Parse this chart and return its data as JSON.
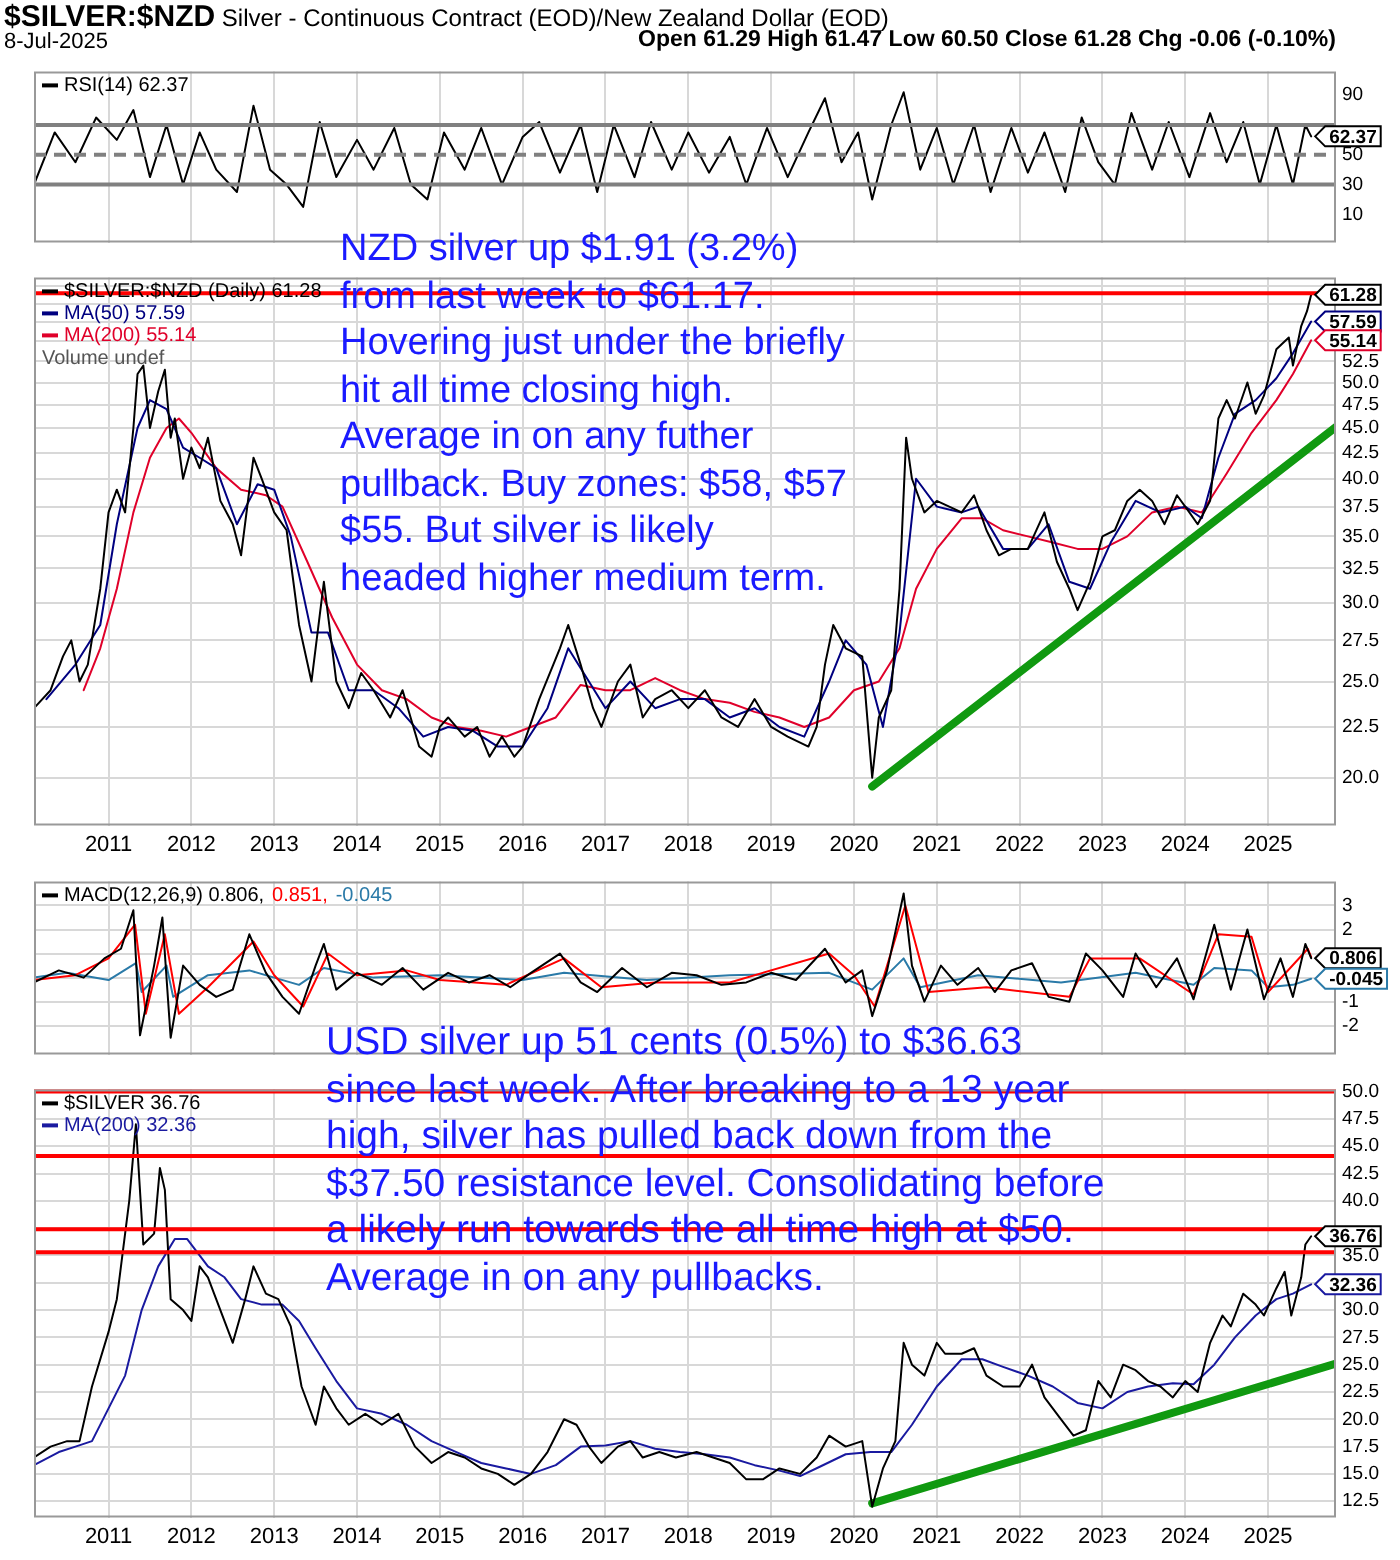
{
  "chart_data": [
    {
      "type": "line",
      "title": "$SILVER:$NZD Silver - Continuous Contract (EOD)/New Zealand Dollar (EOD)",
      "subtitle": "8-Jul-2025",
      "xlim": [
        2010.1,
        2025.82
      ],
      "xticks": [
        2011,
        2012,
        2013,
        2014,
        2015,
        2016,
        2017,
        2018,
        2019,
        2020,
        2021,
        2022,
        2023,
        2024,
        2025
      ],
      "ylim": [
        -9,
        106
      ],
      "yticks": [
        10,
        30,
        50,
        {
          "value": 70,
          "label": null
        },
        90
      ],
      "grid": "x",
      "legend": "top left",
      "tick_labels": "y",
      "series": [
        {
          "name": "RSI(14) 62.37",
          "color": "#000000",
          "x": [
            2010.1,
            2010.35,
            2010.6,
            2010.85,
            2011.1,
            2011.3,
            2011.5,
            2011.7,
            2011.9,
            2012.1,
            2012.3,
            2012.55,
            2012.75,
            2012.95,
            2013.15,
            2013.35,
            2013.55,
            2013.75,
            2014.0,
            2014.2,
            2014.45,
            2014.65,
            2014.85,
            2015.05,
            2015.3,
            2015.5,
            2015.75,
            2016.0,
            2016.2,
            2016.45,
            2016.7,
            2016.9,
            2017.1,
            2017.35,
            2017.55,
            2017.8,
            2018.0,
            2018.25,
            2018.5,
            2018.7,
            2018.95,
            2019.2,
            2019.45,
            2019.65,
            2019.85,
            2020.05,
            2020.22,
            2020.45,
            2020.6,
            2020.8,
            2021.0,
            2021.2,
            2021.45,
            2021.65,
            2021.9,
            2022.1,
            2022.3,
            2022.55,
            2022.75,
            2022.95,
            2023.15,
            2023.35,
            2023.6,
            2023.8,
            2024.05,
            2024.3,
            2024.5,
            2024.7,
            2024.9,
            2025.1,
            2025.3,
            2025.45,
            2025.52
          ],
          "values": [
            30,
            65,
            45,
            75,
            60,
            80,
            35,
            70,
            30,
            65,
            40,
            25,
            83,
            40,
            30,
            15,
            72,
            35,
            60,
            40,
            68,
            30,
            20,
            65,
            40,
            68,
            30,
            62,
            72,
            38,
            70,
            25,
            70,
            35,
            72,
            40,
            65,
            38,
            62,
            30,
            68,
            35,
            65,
            88,
            45,
            65,
            20,
            70,
            92,
            40,
            68,
            30,
            70,
            25,
            68,
            38,
            65,
            25,
            75,
            45,
            30,
            78,
            40,
            72,
            35,
            78,
            45,
            72,
            30,
            70,
            30,
            70,
            62.37
          ]
        }
      ],
      "ref_lines": [
        {
          "axis": "y",
          "value": 30,
          "color": "#808080"
        },
        {
          "axis": "y",
          "value": 50,
          "color": "#808080",
          "line_style": "dashed"
        },
        {
          "axis": "y",
          "value": 70,
          "color": "#808080"
        }
      ],
      "annotations": [
        "Open 61.29 High 61.47 Low 60.50 Close 61.28 Chg -0.06 (-0.10%)",
        "62.37"
      ]
    },
    {
      "type": "line",
      "xlim": [
        2010.1,
        2025.82
      ],
      "xticks": [
        2011,
        2012,
        2013,
        2014,
        2015,
        2016,
        2017,
        2018,
        2019,
        2020,
        2021,
        2022,
        2023,
        2024,
        2025
      ],
      "ylim": [
        17.9,
        63.8
      ],
      "log": true,
      "yticks": [
        {
          "value": 20,
          "label": "20.0"
        },
        {
          "value": 22.5,
          "label": "22.5"
        },
        {
          "value": 25,
          "label": "25.0"
        },
        {
          "value": 27.5,
          "label": "27.5"
        },
        {
          "value": 30,
          "label": "30.0"
        },
        {
          "value": 32.5,
          "label": "32.5"
        },
        {
          "value": 35,
          "label": "35.0"
        },
        {
          "value": 37.5,
          "label": "37.5"
        },
        {
          "value": 40,
          "label": "40.0"
        },
        {
          "value": 42.5,
          "label": "42.5"
        },
        {
          "value": 45,
          "label": "45.0"
        },
        {
          "value": 47.5,
          "label": "47.5"
        },
        {
          "value": 50,
          "label": "50.0"
        },
        {
          "value": 52.5,
          "label": "52.5"
        },
        {
          "value": 55,
          "label": null
        },
        {
          "value": 57.5,
          "label": null
        },
        {
          "value": 60,
          "label": null
        },
        {
          "value": 62.5,
          "label": null
        }
      ],
      "grid": true,
      "legend": "top left",
      "series": [
        {
          "name": "$SILVER:$NZD (Daily) 61.28",
          "color": "#000000",
          "x": [
            2010.1,
            2010.3,
            2010.45,
            2010.55,
            2010.65,
            2010.75,
            2010.9,
            2011.0,
            2011.1,
            2011.2,
            2011.3,
            2011.35,
            2011.42,
            2011.5,
            2011.6,
            2011.68,
            2011.75,
            2011.8,
            2011.9,
            2012.0,
            2012.1,
            2012.2,
            2012.35,
            2012.5,
            2012.6,
            2012.75,
            2012.85,
            2013.0,
            2013.15,
            2013.3,
            2013.45,
            2013.6,
            2013.75,
            2013.9,
            2014.05,
            2014.2,
            2014.4,
            2014.55,
            2014.75,
            2014.9,
            2015.0,
            2015.1,
            2015.3,
            2015.45,
            2015.6,
            2015.75,
            2015.9,
            2016.0,
            2016.2,
            2016.45,
            2016.55,
            2016.7,
            2016.85,
            2016.95,
            2017.15,
            2017.3,
            2017.45,
            2017.6,
            2017.8,
            2018.0,
            2018.2,
            2018.4,
            2018.6,
            2018.8,
            2019.0,
            2019.2,
            2019.45,
            2019.55,
            2019.65,
            2019.75,
            2019.9,
            2020.1,
            2020.22,
            2020.3,
            2020.45,
            2020.55,
            2020.63,
            2020.7,
            2020.85,
            2021.0,
            2021.15,
            2021.3,
            2021.45,
            2021.6,
            2021.75,
            2021.9,
            2022.1,
            2022.3,
            2022.45,
            2022.6,
            2022.7,
            2022.85,
            2023.0,
            2023.15,
            2023.3,
            2023.45,
            2023.6,
            2023.75,
            2023.9,
            2024.05,
            2024.15,
            2024.3,
            2024.4,
            2024.5,
            2024.6,
            2024.75,
            2024.85,
            2024.95,
            2025.1,
            2025.25,
            2025.3,
            2025.4,
            2025.47,
            2025.52
          ],
          "values": [
            23.5,
            24.5,
            26.5,
            27.5,
            25,
            26,
            31,
            37,
            39,
            37,
            45,
            51,
            52,
            45,
            49,
            51.5,
            44,
            46,
            40,
            43,
            41,
            44,
            38,
            36,
            33.5,
            42,
            40,
            37,
            35.5,
            28.5,
            25,
            31.5,
            25,
            23.5,
            25.5,
            24.5,
            23,
            24.5,
            21.5,
            21,
            22.5,
            23,
            22,
            22.5,
            21,
            22,
            21,
            21.5,
            24,
            27,
            28.5,
            26,
            23.5,
            22.5,
            25,
            26,
            23,
            24,
            24.5,
            23.5,
            24.5,
            23,
            22.5,
            24,
            22.5,
            22,
            21.5,
            22.5,
            26,
            28.5,
            27,
            26.5,
            20,
            23,
            24.5,
            31,
            44,
            40,
            37,
            38,
            37.5,
            37,
            38.5,
            35.5,
            33.5,
            34,
            34,
            37,
            33,
            31,
            29.5,
            31.5,
            35,
            35.5,
            38,
            39,
            38,
            36,
            38.5,
            37,
            36,
            38,
            46,
            48,
            46,
            50,
            46.5,
            48.5,
            54,
            55.5,
            52,
            57,
            59,
            61.28
          ]
        },
        {
          "name": "MA(50) 57.59",
          "color": "#000080",
          "x": [
            2010.25,
            2010.6,
            2010.9,
            2011.1,
            2011.35,
            2011.5,
            2011.7,
            2011.9,
            2012.1,
            2012.3,
            2012.55,
            2012.8,
            2013.0,
            2013.2,
            2013.45,
            2013.65,
            2013.9,
            2014.2,
            2014.5,
            2014.8,
            2015.1,
            2015.4,
            2015.7,
            2016.0,
            2016.3,
            2016.55,
            2016.8,
            2017.0,
            2017.3,
            2017.6,
            2017.9,
            2018.2,
            2018.5,
            2018.8,
            2019.1,
            2019.4,
            2019.7,
            2019.9,
            2020.15,
            2020.35,
            2020.55,
            2020.75,
            2021.0,
            2021.3,
            2021.5,
            2021.8,
            2022.1,
            2022.35,
            2022.6,
            2022.85,
            2023.1,
            2023.4,
            2023.7,
            2024.0,
            2024.2,
            2024.4,
            2024.6,
            2024.85,
            2025.1,
            2025.3,
            2025.52
          ],
          "values": [
            24,
            26,
            28.5,
            36,
            45,
            48,
            47,
            43,
            42,
            41,
            36,
            39.5,
            39,
            35,
            28,
            28,
            24.5,
            24.5,
            23.5,
            22,
            22.5,
            22.3,
            21.5,
            21.5,
            23.5,
            27,
            25,
            23.5,
            25,
            23.5,
            24,
            24,
            23,
            23.5,
            22.5,
            22,
            25,
            27.5,
            26,
            22.5,
            28,
            40,
            37.5,
            37,
            37.5,
            34,
            34,
            36,
            31.5,
            31,
            34.5,
            38,
            37,
            37.5,
            36.5,
            42,
            46.5,
            48,
            50.5,
            53.5,
            57.59
          ]
        },
        {
          "name": "MA(200) 55.14",
          "color": "#e0002a",
          "x": [
            2010.7,
            2010.9,
            2011.1,
            2011.3,
            2011.5,
            2011.7,
            2011.85,
            2012.0,
            2012.3,
            2012.6,
            2012.9,
            2013.1,
            2013.4,
            2013.7,
            2014.0,
            2014.3,
            2014.6,
            2014.9,
            2015.2,
            2015.5,
            2015.8,
            2016.1,
            2016.4,
            2016.7,
            2017.0,
            2017.3,
            2017.6,
            2017.9,
            2018.2,
            2018.5,
            2018.8,
            2019.1,
            2019.4,
            2019.7,
            2020.0,
            2020.3,
            2020.55,
            2020.75,
            2021.0,
            2021.3,
            2021.55,
            2021.8,
            2022.1,
            2022.4,
            2022.7,
            2023.0,
            2023.3,
            2023.6,
            2023.9,
            2024.2,
            2024.5,
            2024.8,
            2025.1,
            2025.3,
            2025.52
          ],
          "values": [
            24.5,
            27,
            31,
            37,
            42,
            45,
            46,
            44.5,
            41,
            39,
            38.5,
            37.5,
            33,
            29,
            26,
            24.5,
            24,
            23,
            22.5,
            22.3,
            22,
            22.5,
            23,
            24.8,
            24.5,
            24.5,
            25.2,
            24.5,
            24,
            23.8,
            23.3,
            23,
            22.5,
            23,
            24.5,
            25,
            27,
            31,
            34,
            36.5,
            36.5,
            35.5,
            35,
            34.5,
            34,
            34,
            35,
            37,
            37.5,
            37,
            40.5,
            44.5,
            48,
            51,
            55.14
          ]
        },
        {
          "color": "#109910",
          "x": [
            2020.22,
            2025.82
          ],
          "values": [
            19.6,
            45.1
          ]
        }
      ],
      "ref_lines": [
        {
          "axis": "y",
          "value": 61.5,
          "color": "#ff0000"
        }
      ],
      "annotations": [
        "Volume undef",
        "NZD silver up $1.91 (3.2%) from last week to $61.17. Hovering just under the briefly hit all time closing high. Average in on any futher pullback. Buy zones: $58, $57 $55. But silver is likely headed higher medium term.",
        "61.28",
        "57.59",
        "55.14"
      ]
    },
    {
      "type": "line",
      "xlim": [
        2010.1,
        2025.82
      ],
      "xticks": [
        2011,
        2012,
        2013,
        2014,
        2015,
        2016,
        2017,
        2018,
        2019,
        2020,
        2021,
        2022,
        2023,
        2024,
        2025
      ],
      "ylim": [
        -3.2,
        4
      ],
      "yticks": [
        -2,
        -1,
        {
          "value": 0,
          "label": null
        },
        {
          "value": 1,
          "label": null
        },
        2,
        3
      ],
      "grid": true,
      "legend": "top left",
      "tick_labels": "y",
      "series": [
        {
          "name": "MACD(12,26,9) 0.806,",
          "color": "#000000",
          "x": [
            2010.1,
            2010.4,
            2010.7,
            2010.95,
            2011.15,
            2011.3,
            2011.38,
            2011.55,
            2011.65,
            2011.75,
            2011.9,
            2012.1,
            2012.3,
            2012.5,
            2012.7,
            2012.9,
            2013.1,
            2013.3,
            2013.5,
            2013.6,
            2013.75,
            2014.0,
            2014.3,
            2014.55,
            2014.8,
            2015.1,
            2015.35,
            2015.6,
            2015.85,
            2016.1,
            2016.45,
            2016.7,
            2016.9,
            2017.2,
            2017.5,
            2017.8,
            2018.1,
            2018.4,
            2018.7,
            2019.0,
            2019.3,
            2019.65,
            2019.9,
            2020.1,
            2020.22,
            2020.4,
            2020.6,
            2020.7,
            2020.85,
            2021.05,
            2021.25,
            2021.5,
            2021.7,
            2021.9,
            2022.15,
            2022.35,
            2022.6,
            2022.8,
            2023.0,
            2023.25,
            2023.4,
            2023.65,
            2023.9,
            2024.1,
            2024.35,
            2024.55,
            2024.75,
            2024.95,
            2025.15,
            2025.3,
            2025.45,
            2025.52
          ],
          "values": [
            -0.2,
            0.3,
            0,
            0.8,
            1.2,
            2.8,
            -2.4,
            0.5,
            2.5,
            -2.5,
            0.5,
            -0.3,
            -0.8,
            -0.5,
            1.8,
            0.2,
            -0.8,
            -1.5,
            0.5,
            1.4,
            -0.5,
            0.2,
            -0.3,
            0.4,
            -0.5,
            0.2,
            -0.2,
            0.1,
            -0.4,
            0.2,
            1,
            -0.2,
            -0.6,
            0.4,
            -0.4,
            0.2,
            0.1,
            -0.3,
            -0.2,
            0.2,
            -0.1,
            1.2,
            -0.2,
            0.3,
            -1.6,
            0.3,
            3.5,
            0.5,
            -1,
            0.5,
            -0.3,
            0.4,
            -0.6,
            0.3,
            0.6,
            -0.8,
            -1,
            1,
            0.3,
            -0.8,
            1,
            -0.4,
            0.8,
            -0.9,
            2.2,
            -0.5,
            2,
            -0.9,
            0.8,
            -0.8,
            1.4,
            0.806
          ]
        },
        {
          "name": "0.851,",
          "color": "#ff0000",
          "x": [
            2010.1,
            2010.6,
            2011.0,
            2011.32,
            2011.45,
            2011.68,
            2011.85,
            2012.2,
            2012.75,
            2013.0,
            2013.35,
            2013.65,
            2014.0,
            2014.6,
            2015.0,
            2015.8,
            2016.5,
            2016.95,
            2017.6,
            2018.5,
            2019.7,
            2020.0,
            2020.25,
            2020.62,
            2020.9,
            2021.6,
            2022.6,
            2022.85,
            2023.45,
            2024.1,
            2024.4,
            2024.8,
            2025.0,
            2025.48,
            2025.52
          ],
          "values": [
            -0.1,
            0.1,
            0.8,
            2.2,
            -1.5,
            1.8,
            -1.5,
            -0.4,
            1.5,
            0.1,
            -1.2,
            1,
            0.1,
            0.3,
            -0.1,
            -0.3,
            0.8,
            -0.4,
            -0.2,
            -0.2,
            1,
            0.1,
            -1.2,
            3,
            -0.6,
            -0.4,
            -0.8,
            0.8,
            0.8,
            -0.7,
            1.8,
            1.7,
            -0.6,
            1.2,
            0.851
          ]
        },
        {
          "name": "-0.045",
          "color": "#2a7aa8",
          "x": [
            2010.1,
            2010.5,
            2011.0,
            2011.33,
            2011.4,
            2011.7,
            2011.78,
            2012.2,
            2012.7,
            2013.3,
            2013.6,
            2014.2,
            2015.0,
            2016.0,
            2016.5,
            2017.5,
            2018.5,
            2019.7,
            2020.22,
            2020.6,
            2020.8,
            2021.5,
            2022.5,
            2023.4,
            2024.1,
            2024.35,
            2024.8,
            2025.0,
            2025.3,
            2025.52
          ],
          "values": [
            0,
            0.2,
            -0.1,
            0.6,
            -0.6,
            0.5,
            -0.8,
            0.1,
            0.3,
            -0.3,
            0.4,
            0,
            0.1,
            -0.1,
            0.2,
            -0.1,
            0.1,
            0.2,
            -0.5,
            0.8,
            -0.4,
            0.1,
            -0.2,
            0.2,
            -0.3,
            0.4,
            0.3,
            -0.4,
            -0.3,
            -0.045
          ]
        }
      ],
      "annotations": [
        "0.806",
        "-0.045"
      ]
    },
    {
      "type": "line",
      "xlim": [
        2010.1,
        2025.82
      ],
      "xticks": [
        2011,
        2012,
        2013,
        2014,
        2015,
        2016,
        2017,
        2018,
        2019,
        2020,
        2021,
        2022,
        2023,
        2024,
        2025
      ],
      "ylim": [
        11,
        50.2
      ],
      "yticks": [
        {
          "value": 12.5,
          "label": "12.5"
        },
        {
          "value": 15,
          "label": "15.0"
        },
        {
          "value": 17.5,
          "label": "17.5"
        },
        {
          "value": 20,
          "label": "20.0"
        },
        {
          "value": 22.5,
          "label": "22.5"
        },
        {
          "value": 25,
          "label": "25.0"
        },
        {
          "value": 27.5,
          "label": "27.5"
        },
        {
          "value": 30,
          "label": "30.0"
        },
        {
          "value": 32.5,
          "label": null
        },
        {
          "value": 35,
          "label": "35.0"
        },
        {
          "value": 37.5,
          "label": null
        },
        {
          "value": 40,
          "label": "40.0"
        },
        {
          "value": 42.5,
          "label": "42.5"
        },
        {
          "value": 45,
          "label": "45.0"
        },
        {
          "value": 47.5,
          "label": "47.5"
        },
        {
          "value": 50,
          "label": "50.0"
        }
      ],
      "grid": true,
      "legend": "top left",
      "series": [
        {
          "name": "$SILVER 36.76",
          "color": "#000000",
          "x": [
            2010.1,
            2010.3,
            2010.5,
            2010.65,
            2010.8,
            2011.0,
            2011.1,
            2011.25,
            2011.33,
            2011.42,
            2011.55,
            2011.62,
            2011.68,
            2011.75,
            2011.9,
            2012.0,
            2012.1,
            2012.2,
            2012.35,
            2012.5,
            2012.65,
            2012.75,
            2012.9,
            2013.05,
            2013.2,
            2013.33,
            2013.5,
            2013.6,
            2013.75,
            2013.9,
            2014.1,
            2014.3,
            2014.5,
            2014.7,
            2014.9,
            2015.1,
            2015.3,
            2015.5,
            2015.7,
            2015.9,
            2016.1,
            2016.3,
            2016.5,
            2016.65,
            2016.8,
            2016.95,
            2017.15,
            2017.3,
            2017.45,
            2017.65,
            2017.85,
            2018.1,
            2018.3,
            2018.5,
            2018.7,
            2018.9,
            2019.1,
            2019.35,
            2019.55,
            2019.7,
            2019.9,
            2020.1,
            2020.22,
            2020.35,
            2020.5,
            2020.6,
            2020.7,
            2020.85,
            2021.0,
            2021.1,
            2021.3,
            2021.45,
            2021.6,
            2021.8,
            2022.0,
            2022.15,
            2022.3,
            2022.5,
            2022.65,
            2022.8,
            2022.95,
            2023.1,
            2023.25,
            2023.4,
            2023.55,
            2023.7,
            2023.85,
            2024.0,
            2024.15,
            2024.3,
            2024.45,
            2024.55,
            2024.7,
            2024.85,
            2024.95,
            2025.1,
            2025.2,
            2025.28,
            2025.4,
            2025.45,
            2025.52
          ],
          "values": [
            16.5,
            17.5,
            18,
            18,
            23,
            28,
            31,
            40,
            47,
            36,
            37,
            43,
            41,
            31,
            30,
            29,
            34,
            33,
            30,
            27,
            31,
            34,
            31.5,
            31,
            28.5,
            23,
            19.5,
            23,
            21,
            19.5,
            20.5,
            19.5,
            20.5,
            17.5,
            16,
            17,
            16.5,
            15.5,
            15,
            14,
            15,
            17,
            20,
            19.5,
            17.5,
            16,
            17.5,
            18,
            16.5,
            17,
            16.5,
            17,
            16.5,
            16,
            14.5,
            14.5,
            15.5,
            15,
            16.5,
            18.5,
            17.5,
            18,
            12,
            15.5,
            18,
            27,
            25,
            24,
            27,
            26,
            26,
            26.5,
            24,
            23,
            23,
            25,
            22,
            20,
            18.5,
            19,
            23.5,
            22,
            25,
            24.5,
            23.5,
            23,
            22,
            23.5,
            22.5,
            27,
            29.5,
            28.5,
            31.5,
            30.5,
            29.5,
            32,
            33.5,
            29.5,
            33,
            36,
            36.76
          ]
        },
        {
          "name": "MA(200) 32.36",
          "color": "#1a1aa0",
          "x": [
            2010.1,
            2010.4,
            2010.6,
            2010.8,
            2011.0,
            2011.2,
            2011.4,
            2011.6,
            2011.8,
            2011.95,
            2012.2,
            2012.4,
            2012.6,
            2012.85,
            2013.1,
            2013.3,
            2013.5,
            2013.75,
            2014.0,
            2014.3,
            2014.6,
            2014.9,
            2015.2,
            2015.5,
            2015.8,
            2016.1,
            2016.4,
            2016.7,
            2017.0,
            2017.3,
            2017.6,
            2017.9,
            2018.2,
            2018.5,
            2018.8,
            2019.1,
            2019.35,
            2019.6,
            2019.9,
            2020.2,
            2020.45,
            2020.7,
            2021.0,
            2021.3,
            2021.55,
            2021.8,
            2022.1,
            2022.4,
            2022.7,
            2023.0,
            2023.3,
            2023.55,
            2023.85,
            2024.1,
            2024.35,
            2024.6,
            2024.85,
            2025.1,
            2025.3,
            2025.52
          ],
          "values": [
            15.8,
            17,
            17.5,
            18,
            21,
            24,
            30,
            34,
            36.5,
            36.5,
            34,
            33,
            31,
            30.5,
            30.5,
            29,
            26.5,
            23.5,
            21,
            20.5,
            19.5,
            18,
            17,
            16,
            15.5,
            15,
            15.8,
            17.5,
            17.6,
            18,
            17.3,
            17,
            16.8,
            16.5,
            15.8,
            15.3,
            14.8,
            15.7,
            16.8,
            17,
            17,
            19.5,
            23,
            25.5,
            25.5,
            24.8,
            24,
            23,
            21.5,
            21,
            22.5,
            23,
            23.3,
            23.2,
            25,
            27.5,
            29.5,
            31,
            31.5,
            32.36
          ]
        },
        {
          "color": "#109910",
          "x": [
            2020.22,
            2025.82
          ],
          "values": [
            12.3,
            25.1
          ]
        }
      ],
      "ref_lines": [
        {
          "axis": "y",
          "value": 50,
          "color": "#ff0000"
        },
        {
          "axis": "y",
          "value": 44.1,
          "color": "#ff0000"
        },
        {
          "axis": "y",
          "value": 37.4,
          "color": "#ff0000"
        },
        {
          "axis": "y",
          "value": 35.3,
          "color": "#ff0000"
        }
      ],
      "annotations": [
        "USD silver up 51 cents (0.5%) to $36.63 since last week. After breaking to a 13 year high, silver has pulled back down from the $37.50 resistance level. Consolidating before a likely run towards the all time high at $50. Average in on any pullbacks.",
        "36.76",
        "32.36"
      ]
    }
  ]
}
